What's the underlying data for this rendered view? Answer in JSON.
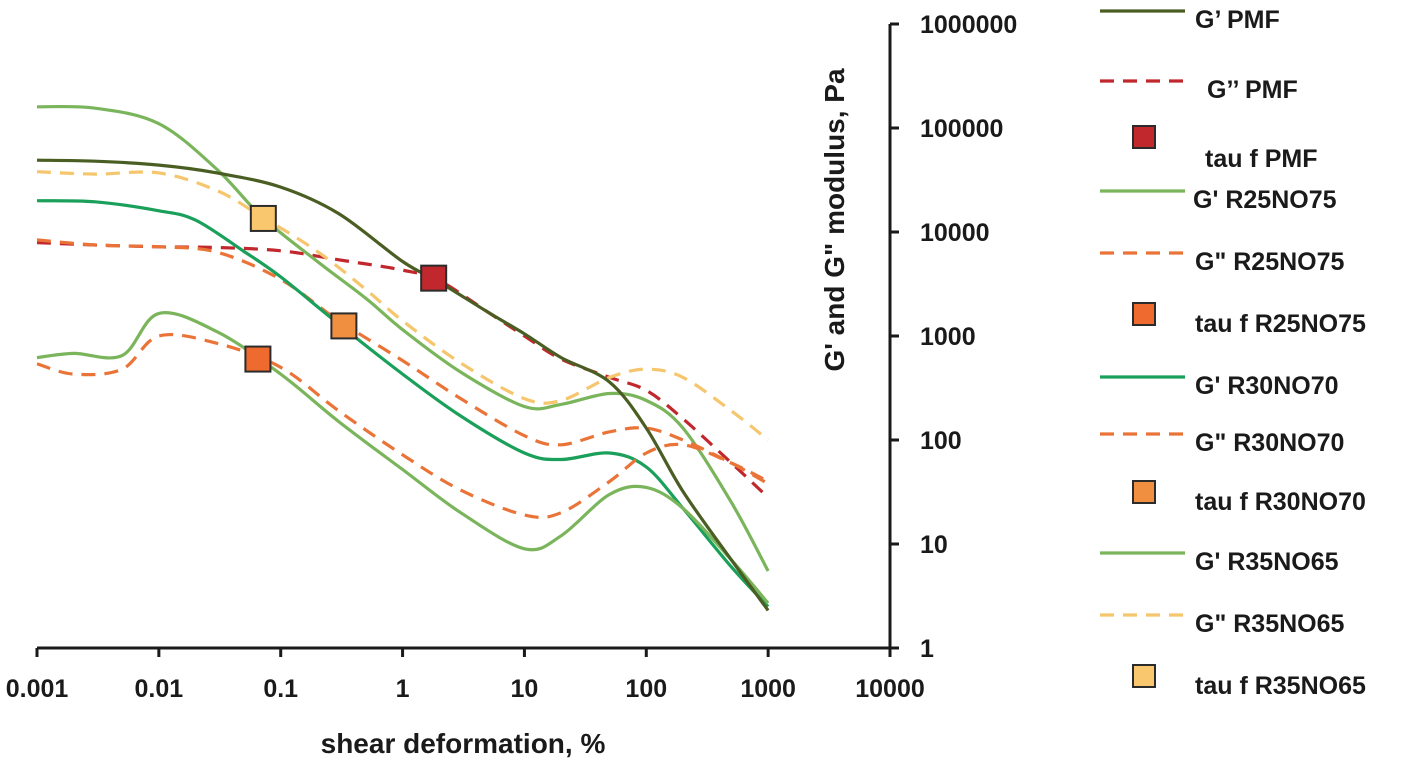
{
  "chart_data": {
    "type": "line",
    "title": "",
    "xlabel": "shear deformation, %",
    "ylabel": "G' and G\" modulus, Pa",
    "xscale": "log",
    "yscale": "log",
    "xlim": [
      0.001,
      10000
    ],
    "ylim": [
      1,
      1000000
    ],
    "x_ticks": [
      0.001,
      0.01,
      0.1,
      1,
      10,
      100,
      1000,
      10000
    ],
    "x_tick_labels": [
      "0.001",
      "0.01",
      "0.1",
      "1",
      "10",
      "100",
      "1000",
      "10000"
    ],
    "y_ticks": [
      1,
      10,
      100,
      1000,
      10000,
      100000,
      1000000
    ],
    "y_tick_labels": [
      "1",
      "10",
      "100",
      "1000",
      "10000",
      "100000",
      "1000000"
    ],
    "y_axis_position": "right",
    "legend_position": "right",
    "series": [
      {
        "name": "G’ PMF",
        "kind": "line",
        "color": "#4a5e23",
        "dash": "solid",
        "x": [
          0.001,
          0.003,
          0.01,
          0.03,
          0.1,
          0.3,
          1,
          2,
          5,
          10,
          20,
          50,
          100,
          200,
          500,
          1000
        ],
        "y": [
          49000,
          48000,
          44000,
          37000,
          27000,
          15000,
          5200,
          3300,
          1700,
          1050,
          620,
          360,
          130,
          32,
          7,
          2.3
        ]
      },
      {
        "name": "G’’ PMF",
        "kind": "line",
        "color": "#c0282d",
        "dash": "dashed",
        "x": [
          0.001,
          0.003,
          0.01,
          0.03,
          0.1,
          0.3,
          1,
          2,
          5,
          10,
          20,
          50,
          100,
          200,
          500,
          1000
        ],
        "y": [
          7900,
          7500,
          7200,
          7100,
          6600,
          5400,
          4300,
          3400,
          1700,
          1000,
          600,
          400,
          300,
          160,
          60,
          28
        ]
      },
      {
        "name": "tau f PMF",
        "kind": "marker",
        "color": "#c0282d",
        "x": [
          1.8
        ],
        "y": [
          3600
        ]
      },
      {
        "name": "G' R25NO75",
        "kind": "line",
        "color": "#7ab55c",
        "dash": "solid",
        "x": [
          0.001,
          0.003,
          0.01,
          0.03,
          0.07,
          0.2,
          0.5,
          1,
          3,
          10,
          20,
          50,
          100,
          200,
          500,
          1000
        ],
        "y": [
          160000,
          155000,
          110000,
          40000,
          14000,
          5200,
          2300,
          1150,
          450,
          210,
          220,
          280,
          240,
          130,
          25,
          5.5
        ]
      },
      {
        "name": "G\" R25NO75",
        "kind": "line",
        "color": "#ea7438",
        "dash": "dashed",
        "x": [
          0.001,
          0.003,
          0.01,
          0.03,
          0.1,
          0.3,
          1,
          3,
          10,
          20,
          50,
          100,
          200,
          500,
          1000
        ],
        "y": [
          8400,
          7500,
          7200,
          6400,
          3500,
          1400,
          580,
          250,
          110,
          90,
          120,
          130,
          100,
          60,
          38
        ]
      },
      {
        "name": "tau f R25NO75",
        "kind": "marker",
        "color": "#ee6a2e",
        "x": [
          0.065
        ],
        "y": [
          600
        ]
      },
      {
        "name": "G' R30NO70",
        "kind": "line",
        "color": "#1aa05a",
        "dash": "solid",
        "x": [
          0.001,
          0.003,
          0.01,
          0.02,
          0.05,
          0.1,
          0.3,
          1,
          3,
          10,
          20,
          50,
          100,
          200,
          500,
          1000
        ],
        "y": [
          20000,
          19500,
          16000,
          13000,
          6500,
          3700,
          1300,
          430,
          170,
          75,
          65,
          75,
          55,
          22,
          6,
          2.5
        ]
      },
      {
        "name": "G\" R30NO70",
        "kind": "line",
        "color": "#ea7438",
        "dash": "dashed",
        "x": [
          0.001,
          0.002,
          0.005,
          0.01,
          0.03,
          0.1,
          0.3,
          1,
          3,
          10,
          20,
          50,
          100,
          200,
          500,
          1000
        ],
        "y": [
          540,
          430,
          480,
          1000,
          850,
          500,
          190,
          72,
          33,
          19,
          20,
          40,
          75,
          90,
          60,
          40
        ]
      },
      {
        "name": "tau f R30NO70",
        "kind": "marker",
        "color": "#f08f40",
        "x": [
          0.33
        ],
        "y": [
          1250
        ]
      },
      {
        "name": "G' R35NO65",
        "kind": "line",
        "color": "#7ab55c",
        "dash": "solid",
        "x": [
          0.001,
          0.002,
          0.005,
          0.01,
          0.03,
          0.1,
          0.3,
          1,
          3,
          10,
          20,
          50,
          100,
          200,
          500,
          1000
        ],
        "y": [
          620,
          680,
          650,
          1650,
          1100,
          430,
          150,
          52,
          20,
          9,
          12,
          30,
          35,
          22,
          7,
          2.7
        ]
      },
      {
        "name": "G\" R35NO65",
        "kind": "line",
        "color": "#f5c66d",
        "dash": "dashed",
        "x": [
          0.001,
          0.003,
          0.01,
          0.03,
          0.07,
          0.2,
          0.5,
          1,
          3,
          10,
          20,
          50,
          100,
          200,
          500,
          1000
        ],
        "y": [
          38000,
          36000,
          37000,
          25000,
          14000,
          6500,
          2800,
          1400,
          550,
          250,
          240,
          400,
          480,
          400,
          190,
          100
        ]
      },
      {
        "name": "tau f R35NO65",
        "kind": "marker",
        "color": "#f8c76e",
        "x": [
          0.072
        ],
        "y": [
          13500
        ]
      }
    ]
  }
}
